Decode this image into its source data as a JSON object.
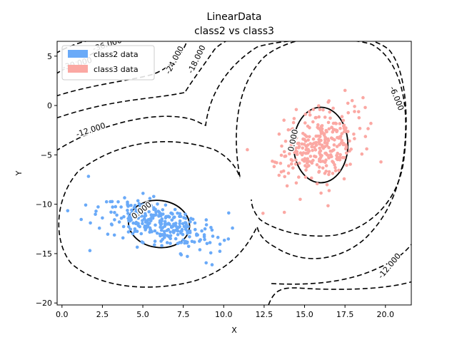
{
  "chart_data": {
    "type": "scatter",
    "title": "LinearData",
    "subtitle": "class2 vs  class3",
    "xlabel": "X",
    "ylabel": "Y",
    "xlim": [
      -0.3,
      21.6
    ],
    "ylim": [
      -20.2,
      6.5
    ],
    "xticks": [
      0.0,
      2.5,
      5.0,
      7.5,
      10.0,
      12.5,
      15.0,
      17.5,
      20.0
    ],
    "xtick_labels": [
      "0.0",
      "2.5",
      "5.0",
      "7.5",
      "10.0",
      "12.5",
      "15.0",
      "17.5",
      "20.0"
    ],
    "yticks": [
      5,
      0,
      -5,
      -10,
      -15,
      -20
    ],
    "ytick_labels": [
      "5",
      "0",
      "−5",
      "−10",
      "−15",
      "−20"
    ],
    "legend_position": "top-left",
    "series": [
      {
        "name": "class2 data",
        "color": "#6aaaf8",
        "center": [
          6.0,
          -12.0
        ],
        "spread_major": 1.9,
        "spread_minor": 0.95,
        "angle_deg": -30,
        "n_points": 300
      },
      {
        "name": "class3 data",
        "color": "#fba8a3",
        "center": [
          16.0,
          -4.0
        ],
        "spread_major": 2.2,
        "spread_minor": 1.2,
        "angle_deg": 72,
        "n_points": 300
      }
    ],
    "contours": [
      {
        "level": "0.000",
        "style": "solid",
        "center": [
          6.0,
          -12.0
        ]
      },
      {
        "level": "0.000",
        "style": "solid",
        "center": [
          16.0,
          -4.0
        ]
      },
      {
        "level": "-6.000",
        "style": "dashed"
      },
      {
        "level": "-12.000",
        "style": "dashed"
      },
      {
        "level": "-18.000",
        "style": "dashed"
      },
      {
        "level": "-24.000",
        "style": "dashed"
      },
      {
        "level": "-30.000",
        "style": "dashed"
      },
      {
        "level": "-36.000",
        "style": "dashed"
      }
    ]
  }
}
